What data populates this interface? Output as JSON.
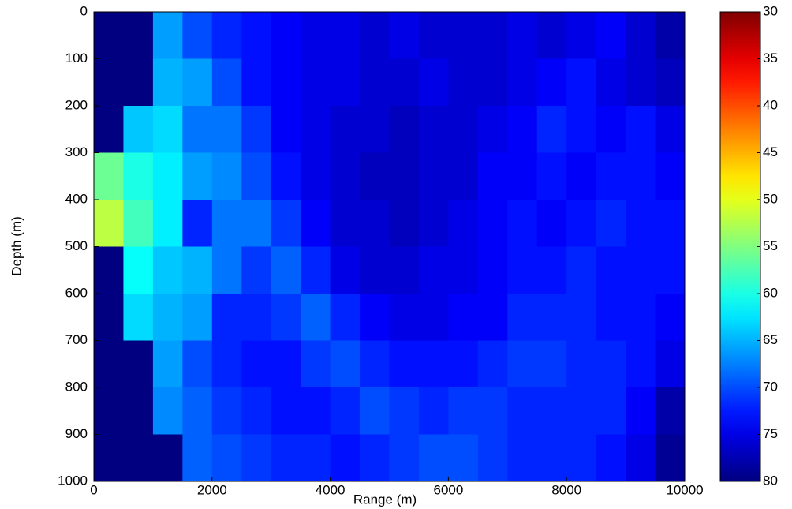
{
  "chart_data": {
    "type": "heatmap",
    "xlabel": "Range (m)",
    "ylabel": "Depth (m)",
    "colormap": "jet",
    "x": [
      250,
      750,
      1250,
      1750,
      2250,
      2750,
      3250,
      3750,
      4250,
      4750,
      5250,
      5750,
      6250,
      6750,
      7250,
      7750,
      8250,
      8750,
      9250,
      9750
    ],
    "y": [
      50,
      150,
      250,
      350,
      450,
      550,
      650,
      750,
      850,
      950
    ],
    "z": [
      [
        80,
        80,
        66,
        70,
        72,
        73,
        74,
        75,
        75,
        76,
        75,
        76,
        76,
        76,
        75,
        76,
        75,
        74,
        76,
        78
      ],
      [
        80,
        80,
        65,
        66,
        70,
        73,
        74,
        75,
        75,
        76,
        76,
        75,
        76,
        76,
        75,
        74,
        73,
        75,
        76,
        77
      ],
      [
        80,
        64,
        63,
        68,
        68,
        71,
        74,
        75,
        76,
        76,
        77,
        76,
        76,
        75,
        74,
        72,
        73,
        74,
        73,
        75
      ],
      [
        56,
        60,
        62,
        66,
        67,
        70,
        73,
        75,
        76,
        77,
        77,
        76,
        76,
        74,
        74,
        73,
        74,
        73,
        73,
        74
      ],
      [
        52,
        58,
        62,
        72,
        68,
        68,
        71,
        74,
        76,
        76,
        77,
        76,
        75,
        74,
        73,
        74,
        73,
        72,
        73,
        73
      ],
      [
        80,
        61,
        64,
        65,
        68,
        71,
        69,
        72,
        75,
        76,
        76,
        75,
        75,
        74,
        73,
        73,
        72,
        73,
        73,
        73
      ],
      [
        80,
        63,
        65,
        66,
        72,
        72,
        71,
        69,
        72,
        74,
        75,
        75,
        74,
        74,
        72,
        72,
        72,
        73,
        73,
        74
      ],
      [
        80,
        80,
        66,
        70,
        72,
        73,
        73,
        71,
        70,
        72,
        73,
        73,
        73,
        72,
        71,
        71,
        72,
        72,
        73,
        75
      ],
      [
        80,
        80,
        67,
        69,
        71,
        72,
        73,
        73,
        72,
        70,
        71,
        72,
        71,
        71,
        72,
        72,
        72,
        72,
        74,
        78
      ],
      [
        80,
        80,
        80,
        69,
        70,
        71,
        72,
        72,
        73,
        72,
        71,
        70,
        70,
        71,
        72,
        72,
        72,
        73,
        75,
        79
      ]
    ],
    "xlim": [
      0,
      10000
    ],
    "xticks": [
      0,
      2000,
      4000,
      6000,
      8000,
      10000
    ],
    "ylim": [
      0,
      1000
    ],
    "y_inverted": true,
    "yticks": [
      0,
      100,
      200,
      300,
      400,
      500,
      600,
      700,
      800,
      900,
      1000
    ],
    "clim": [
      30,
      80
    ],
    "colorbar_inverted": true,
    "cticks": [
      30,
      35,
      40,
      45,
      50,
      55,
      60,
      65,
      70,
      75,
      80
    ]
  }
}
